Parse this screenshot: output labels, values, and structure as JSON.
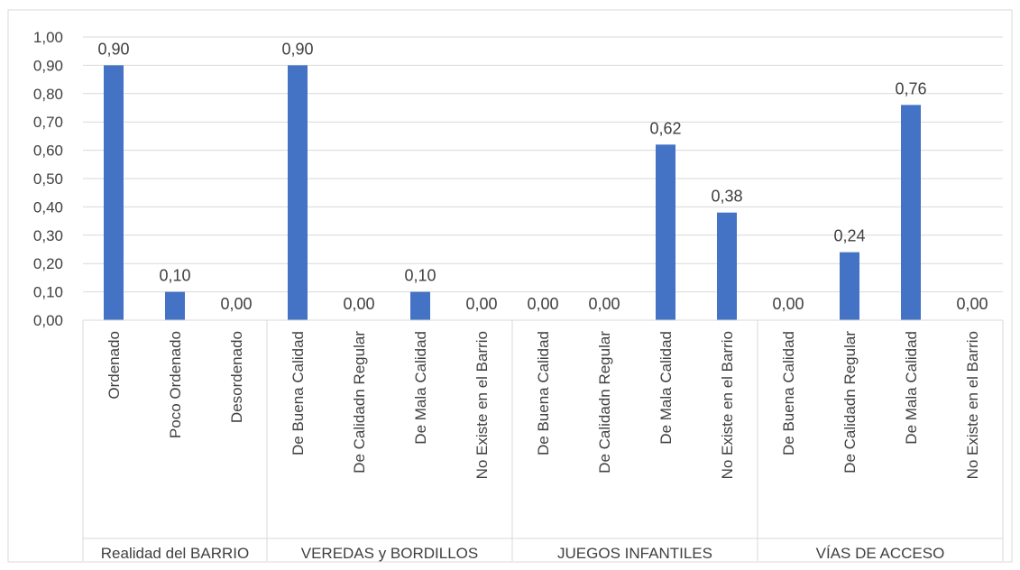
{
  "chart_data": {
    "type": "bar",
    "title": "",
    "xlabel": "",
    "ylabel": "",
    "ylim": [
      0,
      1.0
    ],
    "yticks": [
      "0,00",
      "0,10",
      "0,20",
      "0,30",
      "0,40",
      "0,50",
      "0,60",
      "0,70",
      "0,80",
      "0,90",
      "1,00"
    ],
    "grid": true,
    "legend": "none",
    "bar_color": "#4472C4",
    "groups": [
      {
        "label": "Realidad del BARRIO",
        "categories": [
          "Ordenado",
          "Poco Ordenado",
          "Desordenado"
        ],
        "values": [
          0.9,
          0.1,
          0.0
        ],
        "value_labels": [
          "0,90",
          "0,10",
          "0,00"
        ]
      },
      {
        "label": "VEREDAS y BORDILLOS",
        "categories": [
          "De Buena Calidad",
          "De Calidadn Regular",
          "De Mala Calidad",
          "No Existe en el Barrio"
        ],
        "values": [
          0.9,
          0.0,
          0.1,
          0.0
        ],
        "value_labels": [
          "0,90",
          "0,00",
          "0,10",
          "0,00"
        ]
      },
      {
        "label": "JUEGOS INFANTILES",
        "categories": [
          "De Buena Calidad",
          "De Calidadn Regular",
          "De Mala Calidad",
          "No Existe en el Barrio"
        ],
        "values": [
          0.0,
          0.0,
          0.62,
          0.38
        ],
        "value_labels": [
          "0,00",
          "0,00",
          "0,62",
          "0,38"
        ]
      },
      {
        "label": "VÍAS DE ACCESO",
        "categories": [
          "De Buena Calidad",
          "De Calidadn Regular",
          "De Mala Calidad",
          "No Existe en el Barrio"
        ],
        "values": [
          0.0,
          0.24,
          0.76,
          0.0
        ],
        "value_labels": [
          "0,00",
          "0,24",
          "0,76",
          "0,00"
        ]
      }
    ]
  }
}
